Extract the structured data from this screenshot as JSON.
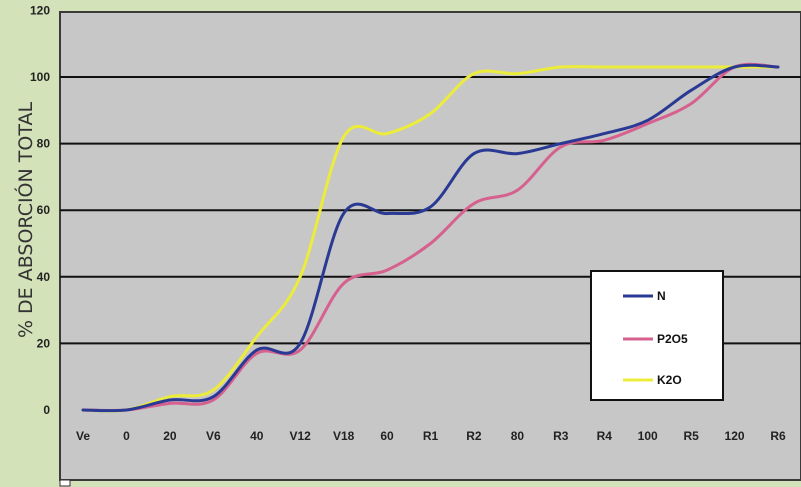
{
  "chart_data": {
    "type": "line",
    "title": "",
    "xlabel": "",
    "ylabel": "% DE ABSORCIÓN TOTAL",
    "ylim": [
      0,
      120
    ],
    "yticks": [
      "0",
      "20",
      "40",
      "60",
      "80",
      "100",
      "120"
    ],
    "categories": [
      "Ve",
      "0",
      "20",
      "V6",
      "40",
      "V12",
      "V18",
      "60",
      "R1",
      "R2",
      "80",
      "R3",
      "R4",
      "100",
      "R5",
      "120",
      "R6"
    ],
    "grid": "horizontal",
    "legend_position": "bottom-right",
    "series": [
      {
        "name": "N",
        "color": "#2a3a94",
        "values": [
          0,
          0,
          3,
          4,
          18,
          20,
          59,
          59,
          61,
          77,
          77,
          80,
          83,
          87,
          96,
          103,
          103
        ]
      },
      {
        "name": "P2O5",
        "color": "#d6608e",
        "values": [
          0,
          0,
          2,
          3,
          17,
          18,
          38,
          42,
          50,
          62,
          66,
          79,
          81,
          86,
          92,
          103,
          103
        ]
      },
      {
        "name": "K2O",
        "color": "#ecec3a",
        "values": [
          0,
          0,
          4,
          6,
          22,
          40,
          82,
          83,
          89,
          101,
          101,
          103,
          103,
          103,
          103,
          103,
          103
        ]
      }
    ]
  }
}
